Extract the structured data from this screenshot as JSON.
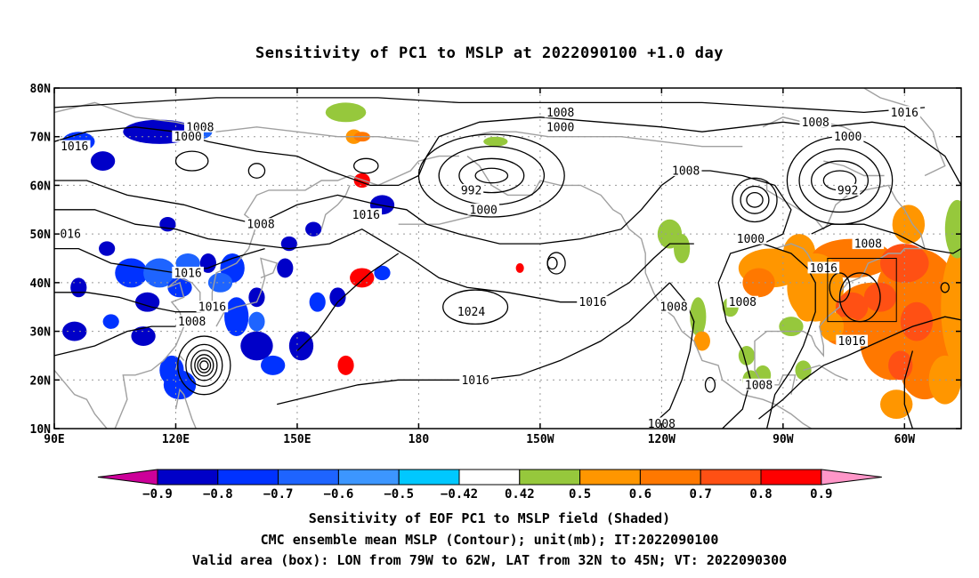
{
  "title": "Sensitivity of PC1 to MSLP at 2022090100 +1.0 day",
  "map": {
    "lon_labels": [
      "90E",
      "120E",
      "150E",
      "180",
      "150W",
      "120W",
      "90W",
      "60W"
    ],
    "lat_labels": [
      "80N",
      "70N",
      "60N",
      "50N",
      "40N",
      "30N",
      "20N",
      "10N"
    ],
    "contour_labels": [
      {
        "text": "1008",
        "lon": 126,
        "lat": 72
      },
      {
        "text": "1000",
        "lon": 123,
        "lat": 70
      },
      {
        "text": "1016",
        "lon": 95,
        "lat": 68
      },
      {
        "text": "1016",
        "lon": 167,
        "lat": 54
      },
      {
        "text": "1008",
        "lon": 141,
        "lat": 52
      },
      {
        "text": "016",
        "lon": 94,
        "lat": 50
      },
      {
        "text": "1016",
        "lon": 123,
        "lat": 42
      },
      {
        "text": "1016",
        "lon": 129,
        "lat": 35
      },
      {
        "text": "1008",
        "lon": 124,
        "lat": 32
      },
      {
        "text": "992",
        "lon": -167,
        "lat": 59
      },
      {
        "text": "1000",
        "lon": -164,
        "lat": 55
      },
      {
        "text": "1008",
        "lon": -145,
        "lat": 75
      },
      {
        "text": "1000",
        "lon": -145,
        "lat": 72
      },
      {
        "text": "1024",
        "lon": -167,
        "lat": 34
      },
      {
        "text": "1016",
        "lon": -137,
        "lat": 36
      },
      {
        "text": "1016",
        "lon": -166,
        "lat": 20
      },
      {
        "text": "1008",
        "lon": -114,
        "lat": 63
      },
      {
        "text": "1008",
        "lon": -117,
        "lat": 35
      },
      {
        "text": "1008",
        "lon": -100,
        "lat": 36
      },
      {
        "text": "1000",
        "lon": -98,
        "lat": 49
      },
      {
        "text": "1016",
        "lon": -80,
        "lat": 43
      },
      {
        "text": "1008",
        "lon": -69,
        "lat": 48
      },
      {
        "text": "1008",
        "lon": -82,
        "lat": 73
      },
      {
        "text": "1000",
        "lon": -74,
        "lat": 70
      },
      {
        "text": "992",
        "lon": -74,
        "lat": 59
      },
      {
        "text": "1016",
        "lon": -60,
        "lat": 75
      },
      {
        "text": "1016",
        "lon": -73,
        "lat": 28
      },
      {
        "text": "1008",
        "lon": -96,
        "lat": 19
      },
      {
        "text": "1008",
        "lon": -120,
        "lat": 11
      }
    ],
    "valid_box": {
      "lon_w": -79,
      "lon_e": -62,
      "lat_s": 32,
      "lat_n": 45
    },
    "colors": {
      "neg": [
        "#cc0099",
        "#0000c8",
        "#0032ff",
        "#1e64ff",
        "#3c96ff",
        "#00c8ff"
      ],
      "pos": [
        "#96c83c",
        "#ff9600",
        "#ff7800",
        "#ff5014",
        "#ff0000",
        "#ff96c8"
      ],
      "coast": "#a0a0a0",
      "contour": "#000000"
    }
  },
  "colorbar": {
    "labels": [
      "−0.9",
      "−0.8",
      "−0.7",
      "−0.6",
      "−0.5",
      "−0.42",
      "0.42",
      "0.5",
      "0.6",
      "0.7",
      "0.8",
      "0.9"
    ],
    "colors": [
      "#0000c8",
      "#0032ff",
      "#1e64ff",
      "#3c96ff",
      "#00c8ff",
      "#ffffff",
      "#96c83c",
      "#ff9600",
      "#ff7800",
      "#ff5014",
      "#ff0000"
    ],
    "end_low": "#cc0099",
    "end_high": "#ff96c8"
  },
  "captions": [
    "Sensitivity of EOF PC1 to MSLP field (Shaded)",
    "CMC ensemble mean MSLP (Contour); unit(mb); IT:2022090100",
    "Valid area (box): LON from 79W to 62W, LAT from 32N to 45N; VT: 2022090300"
  ]
}
